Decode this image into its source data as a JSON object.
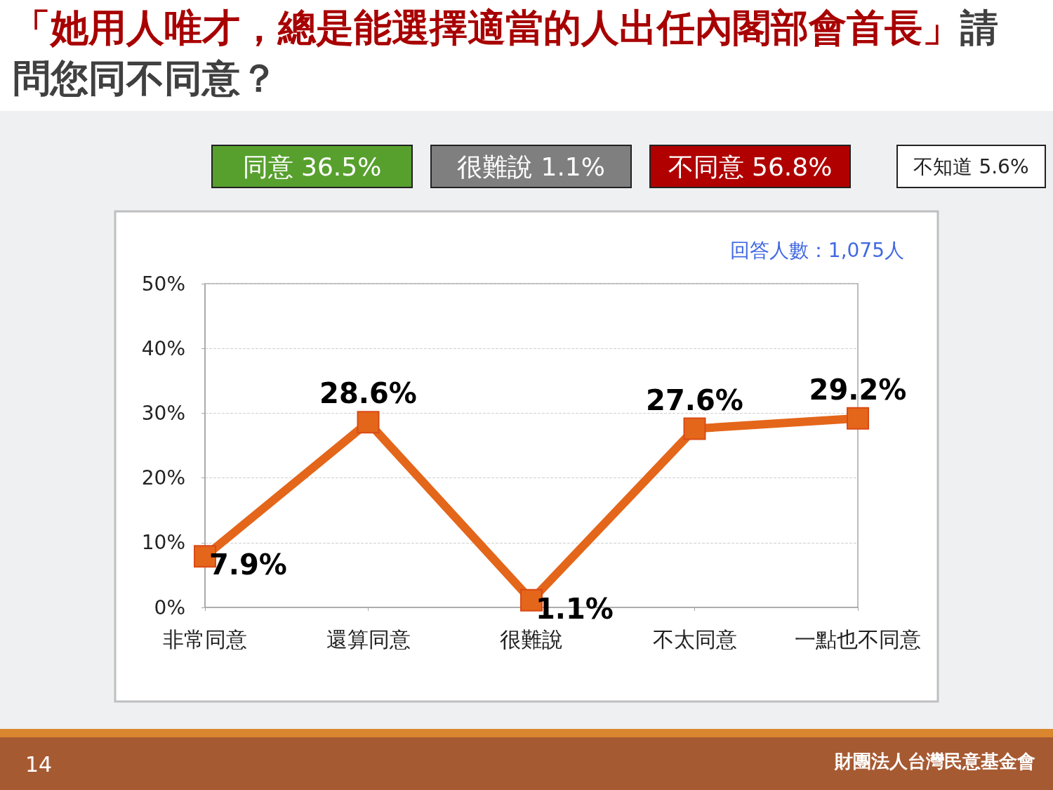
{
  "chart_data": {
    "type": "line",
    "title": "「她用人唯才，總是能選擇適當的人出任內閣部會首長」請問您同不同意？",
    "categories": [
      "非常同意",
      "還算同意",
      "很難說",
      "不太同意",
      "一點也不同意"
    ],
    "series": [
      {
        "color": "#e4661a",
        "values": [
          7.9,
          28.6,
          1.1,
          27.6,
          29.2
        ]
      }
    ],
    "ylim": [
      0,
      50
    ],
    "yticks": [
      {
        "value": 0,
        "label": "0%"
      },
      {
        "value": 10,
        "label": "10%"
      },
      {
        "value": 20,
        "label": "20%"
      },
      {
        "value": 30,
        "label": "30%"
      },
      {
        "value": 40,
        "label": "40%"
      },
      {
        "value": 50,
        "label": "50%"
      }
    ],
    "value_labels": [
      "7.9%",
      "28.6%",
      "1.1%",
      "27.6%",
      "29.2%"
    ],
    "grid": "y",
    "marker": "square",
    "line_style": "solid",
    "annotations": [
      "同意 36.5%",
      "很難說 1.1%",
      "不同意 56.8%",
      "不知道 5.6%",
      "回答人數：1,075人",
      "14",
      "財團法人台灣民意基金會"
    ]
  }
}
